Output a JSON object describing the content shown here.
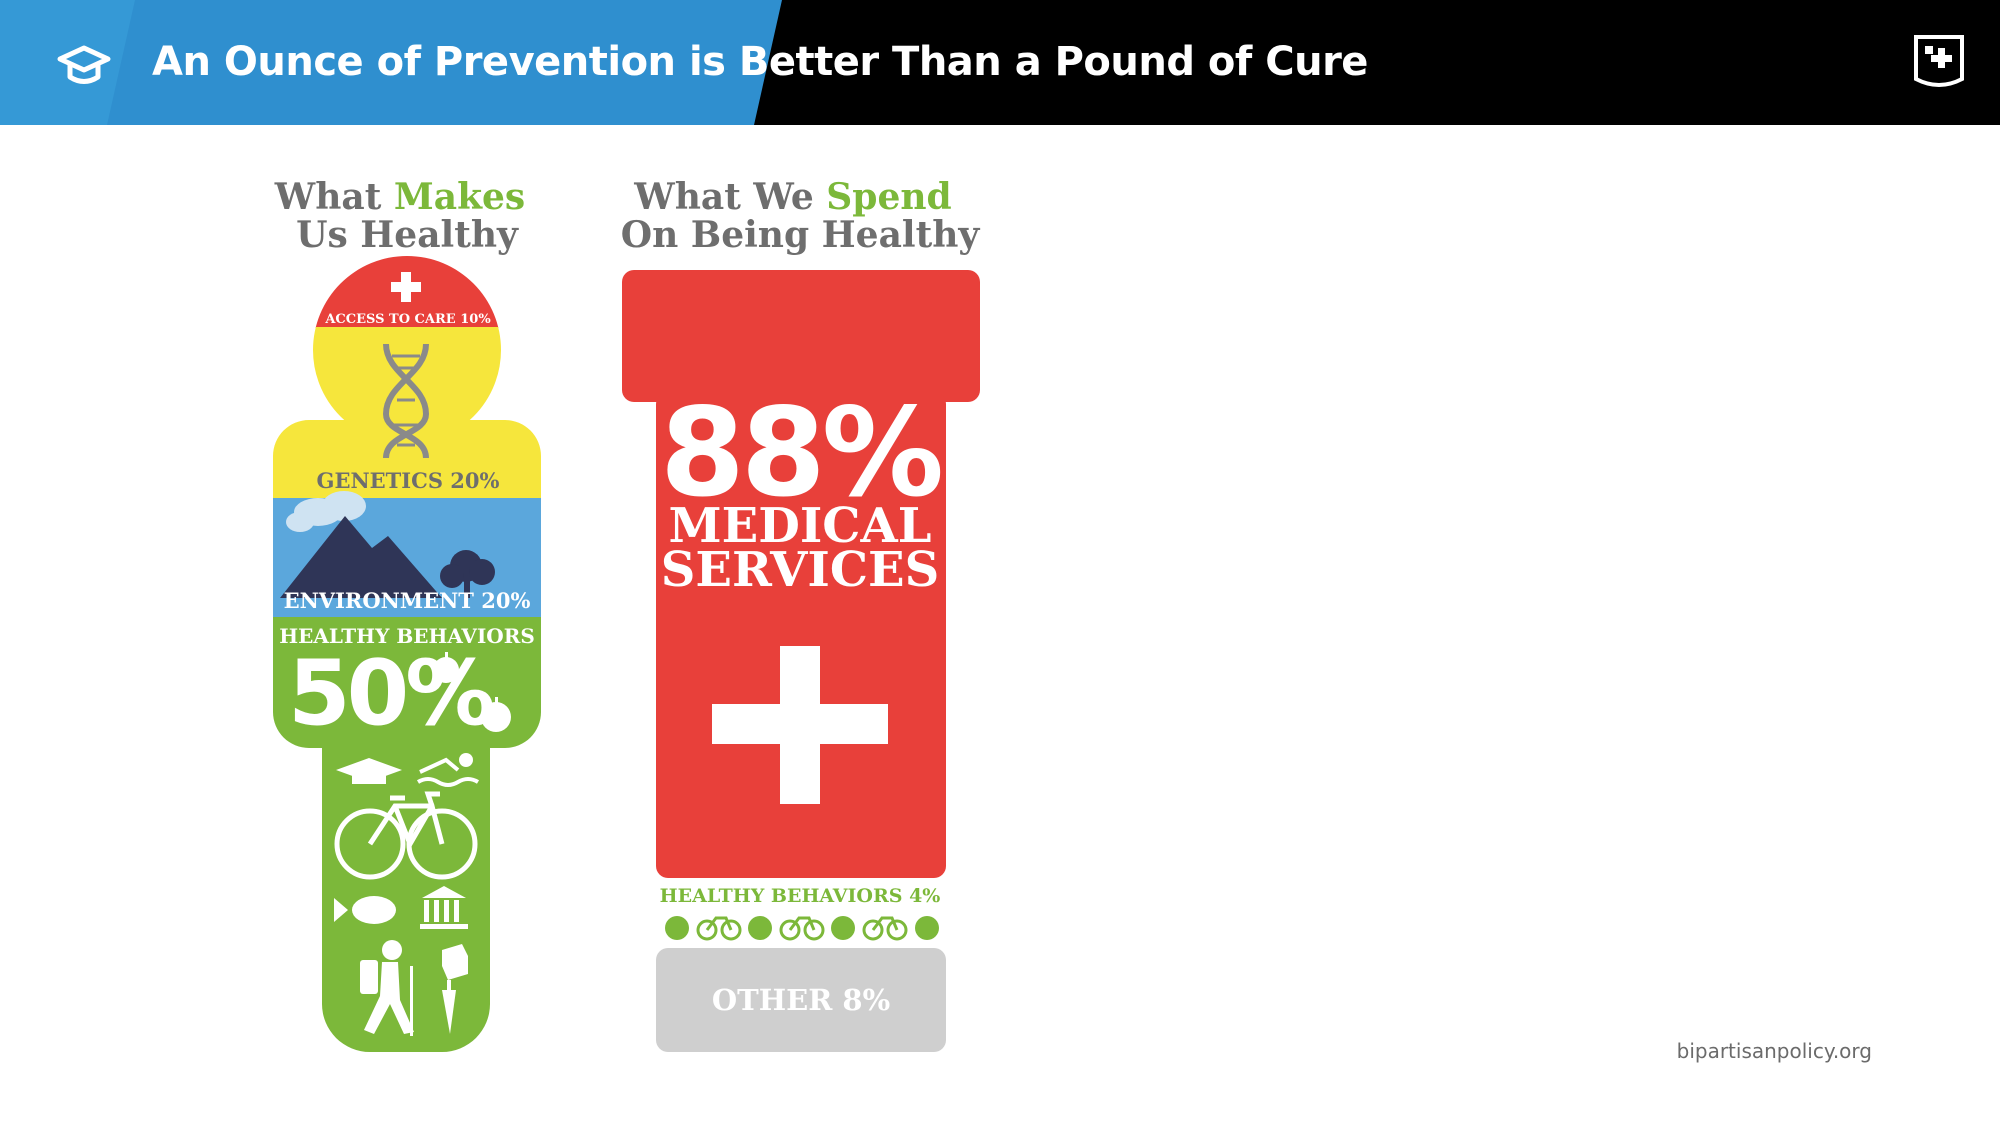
{
  "header": {
    "title": "An Ounce of Prevention is Better Than a Pound of Cure",
    "colors": {
      "blue": "#2f8fcf",
      "black": "#000000"
    }
  },
  "left_panel": {
    "title_part1": "What ",
    "title_highlight": "Makes",
    "title_line2": "Us Healthy",
    "segments": {
      "access_to_care": "ACCESS TO CARE 10%",
      "genetics": "GENETICS 20%",
      "environment": "ENVIRONMENT 20%",
      "healthy_behaviors_label": "HEALTHY BEHAVIORS",
      "healthy_behaviors_value": "50%"
    },
    "shares": {
      "access_to_care": 10,
      "genetics": 20,
      "environment": 20,
      "healthy_behaviors": 50
    }
  },
  "right_panel": {
    "title_part1": "What We ",
    "title_highlight": "Spend",
    "title_line2": "On Being Healthy",
    "medical_value": "88%",
    "medical_line1": "MEDICAL",
    "medical_line2": "SERVICES",
    "healthy_behaviors": "HEALTHY BEHAVIORS 4%",
    "other": "OTHER 8%",
    "shares": {
      "medical_services": 88,
      "healthy_behaviors": 4,
      "other": 8
    }
  },
  "palette": {
    "red": "#e8403a",
    "green": "#7cb83a",
    "yellow": "#f6e63c",
    "sky": "#5ba7dc",
    "grey_text": "#6e6e6e",
    "other_grey": "#cfcfcf"
  },
  "footer": {
    "source": "bipartisanpolicy.org"
  }
}
